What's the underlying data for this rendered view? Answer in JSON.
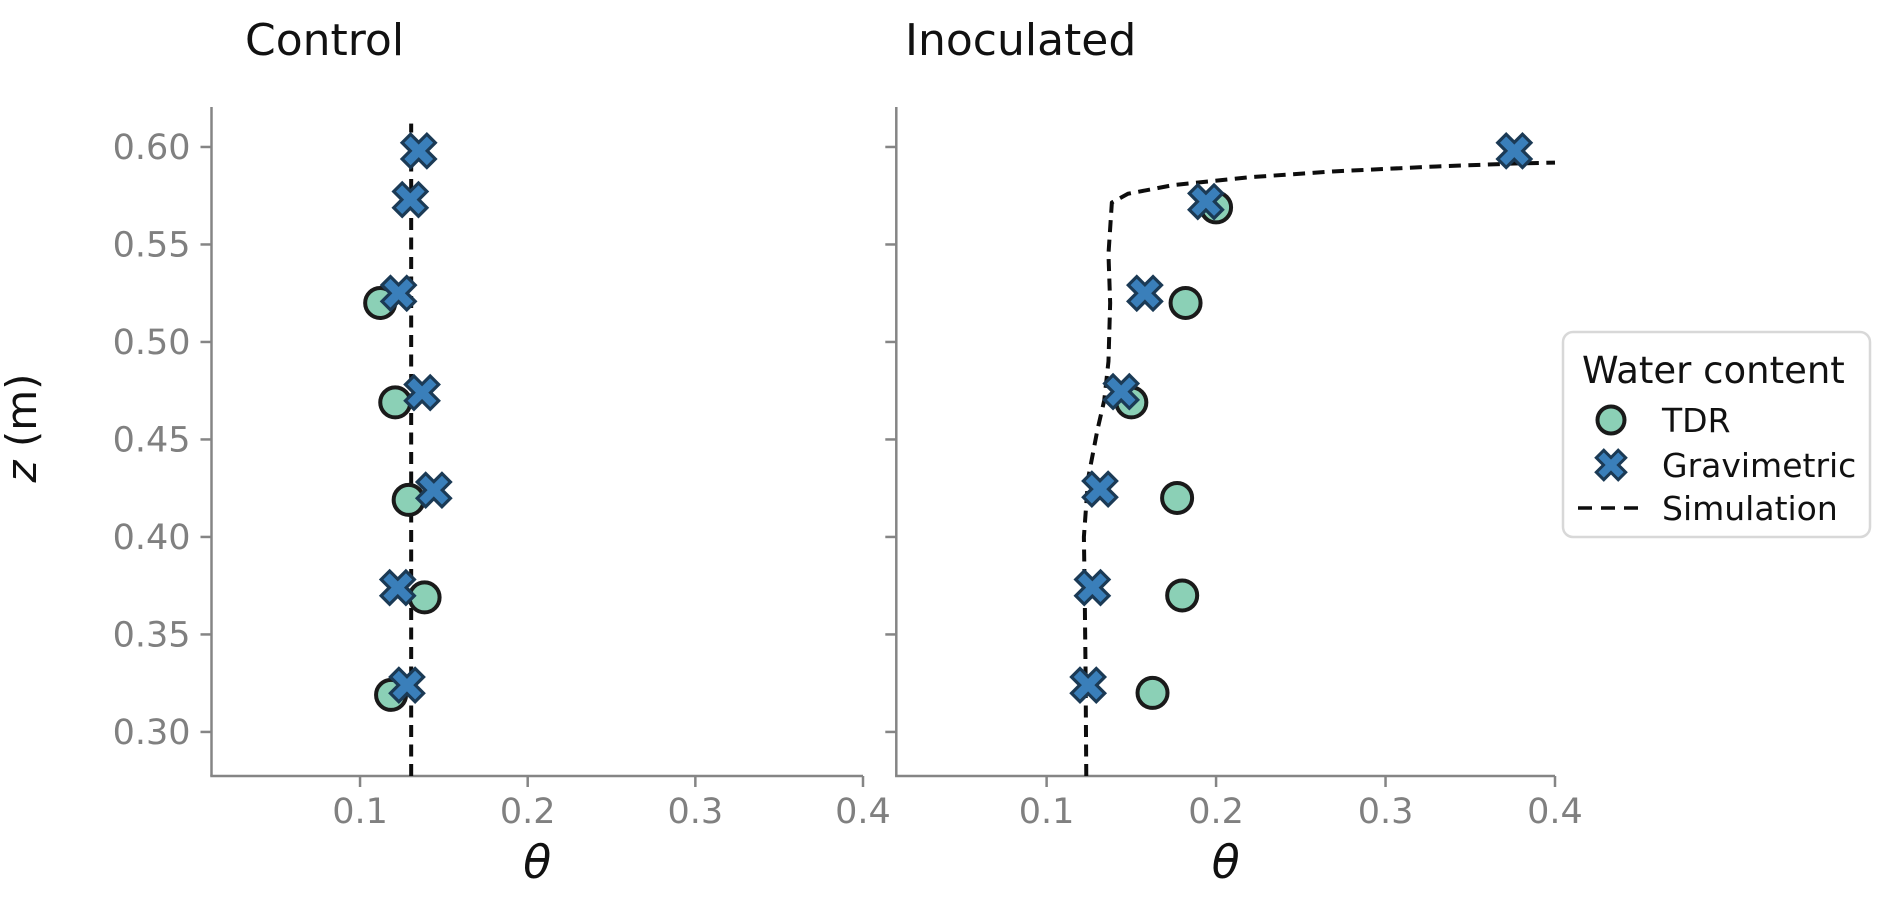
{
  "figure": {
    "ylabel_italic": "z",
    "ylabel_rest": " (m)",
    "xlabel": "θ"
  },
  "legend": {
    "title": "Water content",
    "items": [
      {
        "label": "TDR",
        "marker": "circle"
      },
      {
        "label": "Gravimetric",
        "marker": "x"
      },
      {
        "label": "Simulation",
        "marker": "dashed-line"
      }
    ]
  },
  "colors": {
    "tdr_fill": "#8BD0B6",
    "tdr_edge": "#1a1a1a",
    "gravimetric_fill": "#3A7FBA",
    "gravimetric_edge": "#1b3a55",
    "simulation_line": "#0d0d0d",
    "axis_spine": "#858585",
    "tick_label": "#808080",
    "title_text": "#111111",
    "legend_border": "#d8d8d8",
    "background": "#ffffff"
  },
  "chart_data": [
    {
      "type": "scatter",
      "title": "Control",
      "xlabel": "θ",
      "ylabel": "z (m)",
      "xlim": [
        0.0114,
        0.4
      ],
      "ylim": [
        0.2774,
        0.6205
      ],
      "x_ticks": [
        0.1,
        0.2,
        0.3,
        0.4
      ],
      "y_ticks": [
        0.3,
        0.35,
        0.4,
        0.45,
        0.5,
        0.55,
        0.6
      ],
      "y_tick_labels_shown": true,
      "grid": false,
      "series": [
        {
          "name": "TDR",
          "marker": "circle",
          "points": [
            [
              0.112,
              0.52
            ],
            [
              0.121,
              0.469
            ],
            [
              0.129,
              0.419
            ],
            [
              0.1385,
              0.369
            ],
            [
              0.1185,
              0.319
            ]
          ]
        },
        {
          "name": "Gravimetric",
          "marker": "x",
          "points": [
            [
              0.135,
              0.598
            ],
            [
              0.13,
              0.573
            ],
            [
              0.123,
              0.525
            ],
            [
              0.137,
              0.474
            ],
            [
              0.144,
              0.424
            ],
            [
              0.1225,
              0.374
            ],
            [
              0.128,
              0.324
            ]
          ]
        },
        {
          "name": "Simulation",
          "marker": "dashed-line",
          "points": [
            [
              0.1305,
              0.2774
            ],
            [
              0.1305,
              0.612
            ]
          ]
        }
      ]
    },
    {
      "type": "scatter",
      "title": "Inoculated",
      "xlabel": "θ",
      "ylabel": "z (m)",
      "xlim": [
        0.0113,
        0.4
      ],
      "ylim": [
        0.2774,
        0.6205
      ],
      "x_ticks": [
        0.1,
        0.2,
        0.3,
        0.4
      ],
      "y_ticks": [
        0.3,
        0.35,
        0.4,
        0.45,
        0.5,
        0.55,
        0.6
      ],
      "y_tick_labels_shown": false,
      "grid": false,
      "series": [
        {
          "name": "TDR",
          "marker": "circle",
          "points": [
            [
              0.2,
              0.569
            ],
            [
              0.182,
              0.52
            ],
            [
              0.15,
              0.469
            ],
            [
              0.177,
              0.42
            ],
            [
              0.18,
              0.37
            ],
            [
              0.1625,
              0.32
            ]
          ]
        },
        {
          "name": "Gravimetric",
          "marker": "x",
          "points": [
            [
              0.376,
              0.598
            ],
            [
              0.194,
              0.572
            ],
            [
              0.158,
              0.525
            ],
            [
              0.144,
              0.4745
            ],
            [
              0.1315,
              0.4245
            ],
            [
              0.127,
              0.374
            ],
            [
              0.1245,
              0.324
            ]
          ]
        },
        {
          "name": "Simulation",
          "marker": "dashed-line",
          "points": [
            [
              0.1234,
              0.2774
            ],
            [
              0.123,
              0.33
            ],
            [
              0.1225,
              0.37
            ],
            [
              0.122,
              0.4
            ],
            [
              0.1245,
              0.43
            ],
            [
              0.13,
              0.455
            ],
            [
              0.134,
              0.47
            ],
            [
              0.1365,
              0.49
            ],
            [
              0.1375,
              0.52
            ],
            [
              0.1365,
              0.545
            ],
            [
              0.1385,
              0.5715
            ],
            [
              0.148,
              0.576
            ],
            [
              0.175,
              0.5805
            ],
            [
              0.22,
              0.5845
            ],
            [
              0.27,
              0.5875
            ],
            [
              0.33,
              0.59
            ],
            [
              0.376,
              0.5915
            ],
            [
              0.4,
              0.592
            ]
          ]
        }
      ]
    }
  ]
}
